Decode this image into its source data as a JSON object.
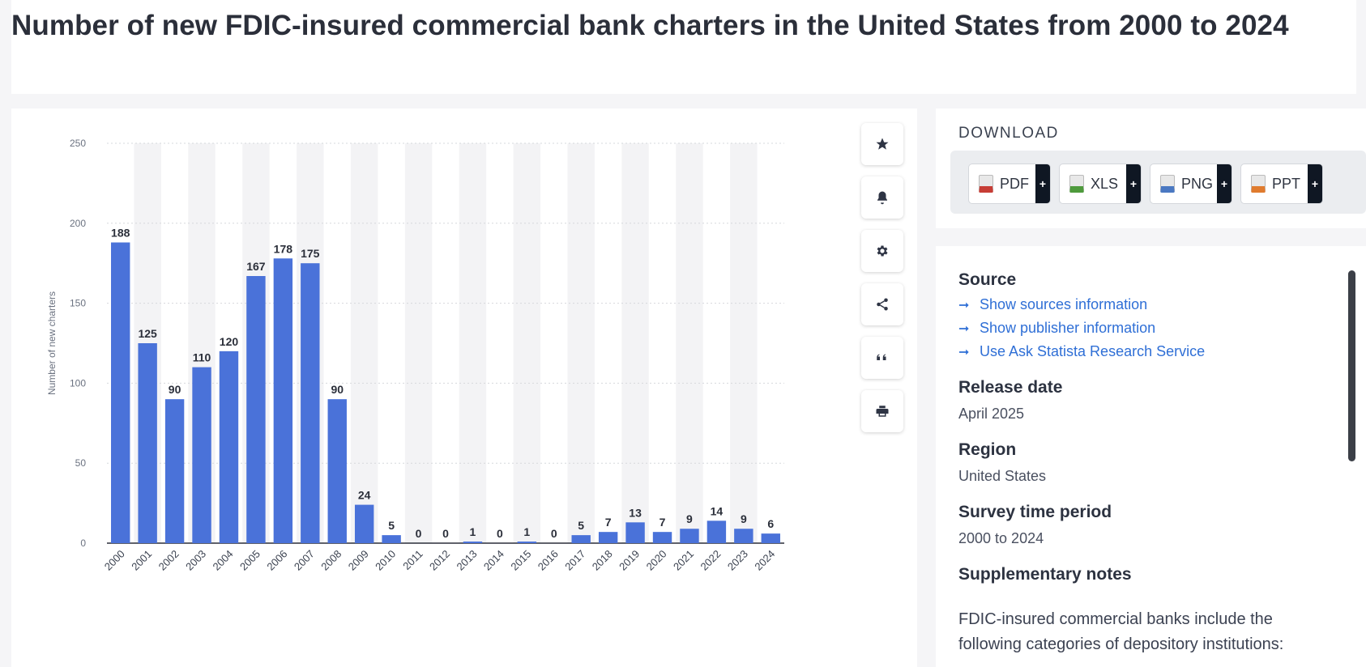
{
  "page": {
    "title": "Number of new FDIC-insured commercial bank charters in the United States from 2000 to 2024"
  },
  "chart_data": {
    "type": "bar",
    "title": "Number of new FDIC-insured commercial bank charters in the United States from 2000 to 2024",
    "xlabel": "",
    "ylabel": "Number of new charters",
    "ylim": [
      0,
      250
    ],
    "yticks": [
      0,
      50,
      100,
      150,
      200,
      250
    ],
    "grid": true,
    "categories": [
      "2000",
      "2001",
      "2002",
      "2003",
      "2004",
      "2005",
      "2006",
      "2007",
      "2008",
      "2009",
      "2010",
      "2011",
      "2012",
      "2013",
      "2014",
      "2015",
      "2016",
      "2017",
      "2018",
      "2019",
      "2020",
      "2021",
      "2022",
      "2023",
      "2024"
    ],
    "values": [
      188,
      125,
      90,
      110,
      120,
      167,
      178,
      175,
      90,
      24,
      5,
      0,
      0,
      1,
      0,
      1,
      0,
      5,
      7,
      13,
      7,
      9,
      14,
      9,
      6
    ],
    "bar_color": "#4a72d9"
  },
  "tools": [
    {
      "name": "star-icon"
    },
    {
      "name": "bell-icon"
    },
    {
      "name": "gear-icon"
    },
    {
      "name": "share-icon"
    },
    {
      "name": "quote-icon"
    },
    {
      "name": "print-icon"
    }
  ],
  "download": {
    "title": "DOWNLOAD",
    "buttons": [
      {
        "label": "PDF",
        "plus": "+",
        "color": "#c73d35"
      },
      {
        "label": "XLS",
        "plus": "+",
        "color": "#4e9a3c"
      },
      {
        "label": "PNG",
        "plus": "+",
        "color": "#4a78c2"
      },
      {
        "label": "PPT",
        "plus": "+",
        "color": "#e07b2e"
      }
    ]
  },
  "info": {
    "source_heading": "Source",
    "links": [
      "Show sources information",
      "Show publisher information",
      "Use Ask Statista Research Service"
    ],
    "release_heading": "Release date",
    "release_value": "April 2025",
    "region_heading": "Region",
    "region_value": "United States",
    "survey_heading": "Survey time period",
    "survey_value": "2000 to 2024",
    "notes_heading": "Supplementary notes",
    "notes_text": "FDIC-insured commercial banks include the following categories of depository institutions:"
  }
}
